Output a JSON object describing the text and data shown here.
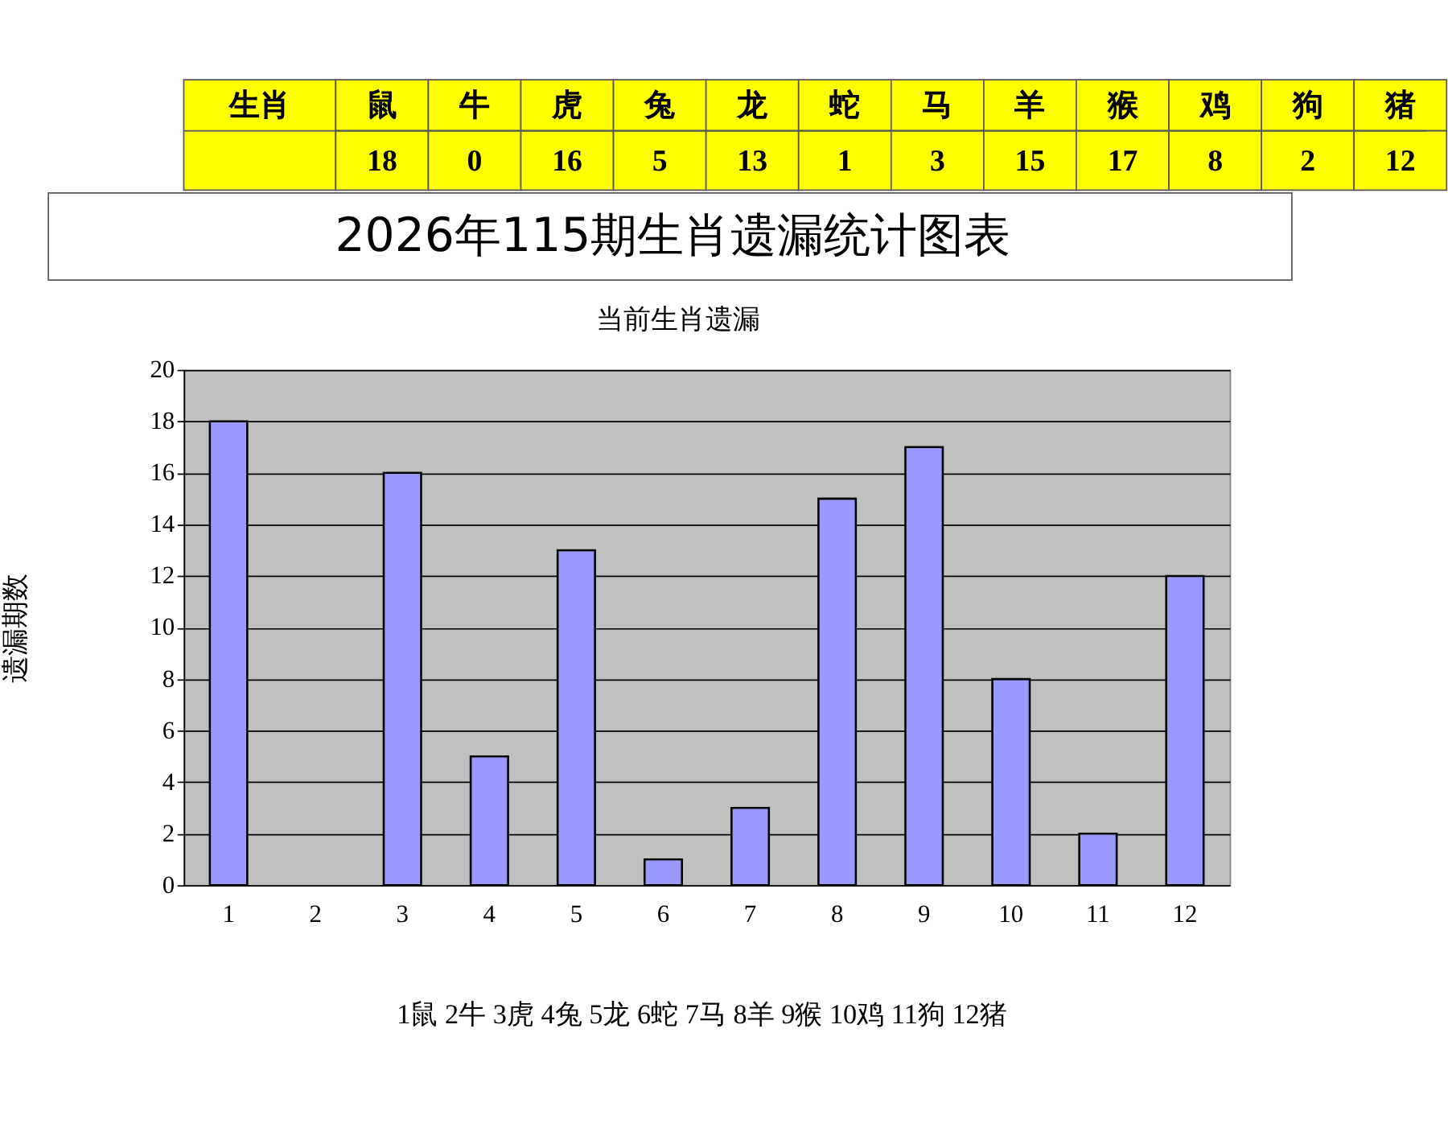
{
  "chart_data": [
    {
      "type": "other",
      "annotations": [
        "生肖"
      ],
      "categories": [
        "鼠",
        "牛",
        "虎",
        "兔",
        "龙",
        "蛇",
        "马",
        "羊",
        "猴",
        "鸡",
        "狗",
        "猪"
      ],
      "values": [
        18,
        0,
        16,
        5,
        13,
        1,
        3,
        15,
        17,
        8,
        2,
        12
      ],
      "data_labels": true
    },
    {
      "type": "bar",
      "title": "2026年115期生肖遗漏统计图表",
      "subtitle": "当前生肖遗漏",
      "ylabel": "遗漏期数",
      "categories": [
        "1",
        "2",
        "3",
        "4",
        "5",
        "6",
        "7",
        "8",
        "9",
        "10",
        "11",
        "12"
      ],
      "values": [
        18,
        0,
        16,
        5,
        13,
        1,
        3,
        15,
        17,
        8,
        2,
        12
      ],
      "color": "#9999ff",
      "ylim": [
        0,
        20
      ],
      "yticks": [
        0,
        2,
        4,
        6,
        8,
        10,
        12,
        14,
        16,
        18,
        20
      ],
      "grid": "y",
      "annotations": [
        "1鼠  2牛  3虎  4兔  5龙  6蛇  7马  8羊  9猴  10鸡  11狗  12猪"
      ]
    }
  ]
}
